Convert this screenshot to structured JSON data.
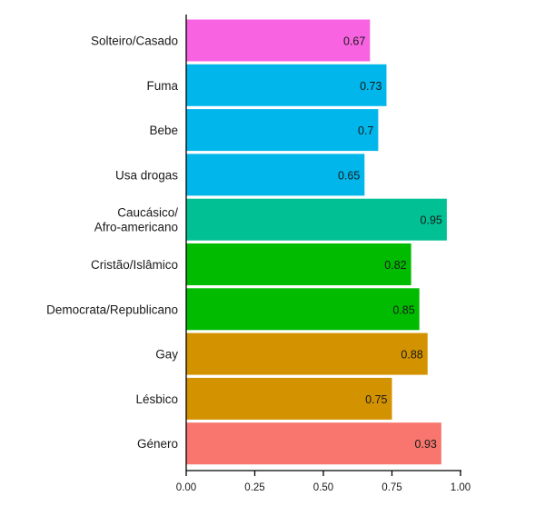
{
  "chart_data": {
    "type": "bar",
    "orientation": "horizontal",
    "title": "",
    "xlabel": "",
    "ylabel": "",
    "xlim": [
      0,
      1
    ],
    "xticks": [
      "0.00",
      "0.25",
      "0.50",
      "0.75",
      "1.00"
    ],
    "grid": false,
    "legend": "none",
    "categories": [
      [
        "Solteiro/Casado"
      ],
      [
        "Fuma"
      ],
      [
        "Bebe"
      ],
      [
        "Usa drogas"
      ],
      [
        "Caucásico/",
        "Afro-americano"
      ],
      [
        "Cristão/Islâmico"
      ],
      [
        "Democrata/Republicano"
      ],
      [
        "Gay"
      ],
      [
        "Lésbico"
      ],
      [
        "Género"
      ]
    ],
    "values": [
      0.67,
      0.73,
      0.7,
      0.65,
      0.95,
      0.82,
      0.85,
      0.88,
      0.75,
      0.93
    ],
    "value_labels": [
      "0.67",
      "0.73",
      "0.7",
      "0.65",
      "0.95",
      "0.82",
      "0.85",
      "0.88",
      "0.75",
      "0.93"
    ],
    "colors": [
      "#f763e0",
      "#00b6eb",
      "#00b6eb",
      "#00b6eb",
      "#00c094",
      "#00bb00",
      "#00bb00",
      "#d39200",
      "#d39200",
      "#f8766d"
    ]
  }
}
